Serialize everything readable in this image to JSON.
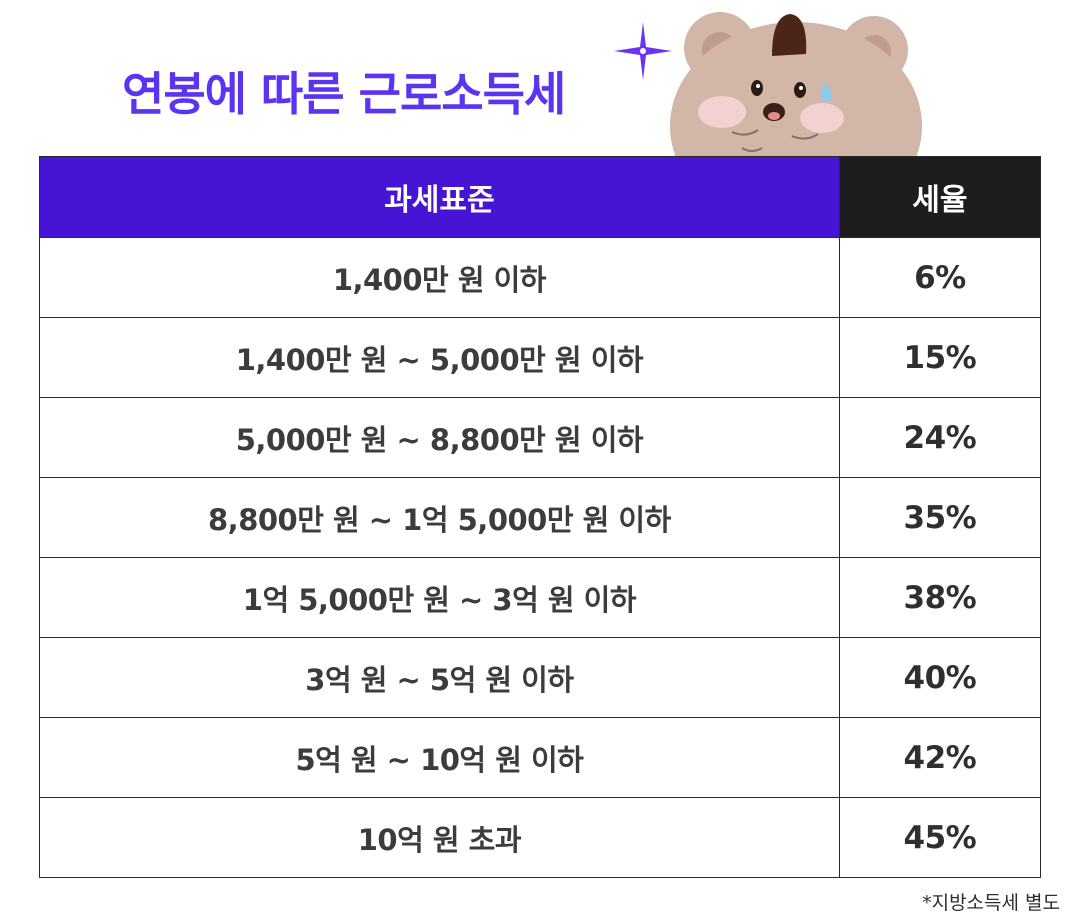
{
  "title": "연봉에 따른 근로소득세",
  "table": {
    "headers": {
      "base": "과세표준",
      "rate": "세율"
    },
    "rows": [
      {
        "base": "1,400만 원 이하",
        "rate": "6%"
      },
      {
        "base": "1,400만 원 ~ 5,000만 원 이하",
        "rate": "15%"
      },
      {
        "base": "5,000만 원 ~ 8,800만 원 이하",
        "rate": "24%"
      },
      {
        "base": "8,800만 원 ~ 1억 5,000만 원 이하",
        "rate": "35%"
      },
      {
        "base": "1억 5,000만 원 ~ 3억 원 이하",
        "rate": "38%"
      },
      {
        "base": "3억 원 ~ 5억 원 이하",
        "rate": "40%"
      },
      {
        "base": "5억 원 ~ 10억 원 이하",
        "rate": "42%"
      },
      {
        "base": "10억 원 초과",
        "rate": "45%"
      }
    ]
  },
  "footnote": "*지방소득세 별도",
  "colors": {
    "title": "#5b34f2",
    "header_base_bg": "#4514d4",
    "header_rate_bg": "#1d1d1d",
    "bear_fur": "#d2b6a8"
  },
  "icons": [
    "sparkle-icon",
    "bear-illustration"
  ]
}
